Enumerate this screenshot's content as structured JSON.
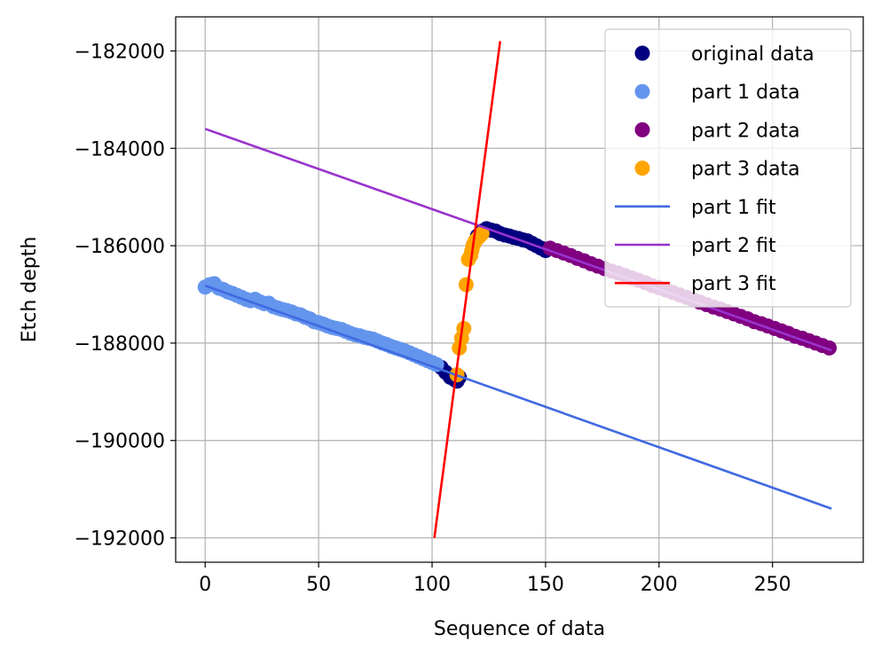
{
  "chart_data": {
    "type": "scatter",
    "title": "",
    "xlabel": "Sequence of data",
    "ylabel": "Etch depth",
    "xlim": [
      -13,
      290
    ],
    "ylim": [
      -192500,
      -181300
    ],
    "xticks": [
      0,
      50,
      100,
      150,
      200,
      250
    ],
    "xtick_labels": [
      "0",
      "50",
      "100",
      "150",
      "200",
      "250"
    ],
    "yticks": [
      -182000,
      -184000,
      -186000,
      -188000,
      -190000,
      -192000
    ],
    "ytick_labels": [
      "−182000",
      "−184000",
      "−186000",
      "−188000",
      "−190000",
      "−192000"
    ],
    "grid": true,
    "legend_position": "top-right",
    "scatter_series": [
      {
        "name": "original data",
        "color": "#000080",
        "points": [
          [
            104,
            -188500
          ],
          [
            106,
            -188600
          ],
          [
            108,
            -188700
          ],
          [
            110,
            -188750
          ],
          [
            111,
            -188780
          ],
          [
            112,
            -188700
          ],
          [
            120,
            -185800
          ],
          [
            122,
            -185700
          ],
          [
            124,
            -185650
          ],
          [
            126,
            -185680
          ],
          [
            128,
            -185700
          ],
          [
            130,
            -185750
          ],
          [
            132,
            -185780
          ],
          [
            134,
            -185800
          ],
          [
            136,
            -185830
          ],
          [
            138,
            -185850
          ],
          [
            140,
            -185880
          ],
          [
            142,
            -185900
          ],
          [
            144,
            -185950
          ],
          [
            146,
            -186000
          ],
          [
            148,
            -186050
          ],
          [
            150,
            -186100
          ]
        ]
      },
      {
        "name": "part 1 data",
        "color": "#6495ED",
        "points": [
          [
            0,
            -186850
          ],
          [
            2,
            -186800
          ],
          [
            4,
            -186780
          ],
          [
            6,
            -186870
          ],
          [
            8,
            -186900
          ],
          [
            10,
            -186950
          ],
          [
            12,
            -186980
          ],
          [
            14,
            -187020
          ],
          [
            16,
            -187060
          ],
          [
            18,
            -187100
          ],
          [
            20,
            -187130
          ],
          [
            22,
            -187100
          ],
          [
            24,
            -187150
          ],
          [
            26,
            -187190
          ],
          [
            28,
            -187180
          ],
          [
            30,
            -187250
          ],
          [
            32,
            -187280
          ],
          [
            34,
            -187310
          ],
          [
            36,
            -187330
          ],
          [
            38,
            -187360
          ],
          [
            40,
            -187400
          ],
          [
            42,
            -187420
          ],
          [
            44,
            -187470
          ],
          [
            46,
            -187500
          ],
          [
            48,
            -187560
          ],
          [
            50,
            -187580
          ],
          [
            52,
            -187610
          ],
          [
            54,
            -187650
          ],
          [
            56,
            -187680
          ],
          [
            58,
            -187700
          ],
          [
            60,
            -187720
          ],
          [
            62,
            -187760
          ],
          [
            64,
            -187800
          ],
          [
            66,
            -187830
          ],
          [
            68,
            -187850
          ],
          [
            70,
            -187880
          ],
          [
            72,
            -187900
          ],
          [
            74,
            -187920
          ],
          [
            76,
            -187960
          ],
          [
            78,
            -188000
          ],
          [
            80,
            -188030
          ],
          [
            82,
            -188070
          ],
          [
            84,
            -188100
          ],
          [
            86,
            -188130
          ],
          [
            88,
            -188160
          ],
          [
            90,
            -188200
          ],
          [
            92,
            -188240
          ],
          [
            94,
            -188280
          ],
          [
            96,
            -188320
          ],
          [
            98,
            -188360
          ],
          [
            100,
            -188400
          ],
          [
            102,
            -188440
          ]
        ]
      },
      {
        "name": "part 2 data",
        "color": "#800080",
        "points": [
          [
            152,
            -186050
          ],
          [
            155,
            -186100
          ],
          [
            158,
            -186150
          ],
          [
            161,
            -186200
          ],
          [
            164,
            -186260
          ],
          [
            167,
            -186310
          ],
          [
            170,
            -186370
          ],
          [
            173,
            -186420
          ],
          [
            176,
            -186470
          ],
          [
            179,
            -186520
          ],
          [
            182,
            -186560
          ],
          [
            185,
            -186610
          ],
          [
            188,
            -186660
          ],
          [
            191,
            -186710
          ],
          [
            194,
            -186760
          ],
          [
            197,
            -186820
          ],
          [
            200,
            -186860
          ],
          [
            203,
            -186910
          ],
          [
            206,
            -186960
          ],
          [
            209,
            -187010
          ],
          [
            212,
            -187060
          ],
          [
            215,
            -187110
          ],
          [
            218,
            -187160
          ],
          [
            221,
            -187210
          ],
          [
            224,
            -187260
          ],
          [
            227,
            -187300
          ],
          [
            230,
            -187350
          ],
          [
            233,
            -187400
          ],
          [
            236,
            -187450
          ],
          [
            239,
            -187500
          ],
          [
            242,
            -187560
          ],
          [
            245,
            -187600
          ],
          [
            248,
            -187650
          ],
          [
            251,
            -187700
          ],
          [
            254,
            -187750
          ],
          [
            257,
            -187800
          ],
          [
            260,
            -187860
          ],
          [
            263,
            -187900
          ],
          [
            266,
            -187950
          ],
          [
            269,
            -188000
          ],
          [
            272,
            -188050
          ],
          [
            275,
            -188100
          ]
        ]
      },
      {
        "name": "part 3 data",
        "color": "#FFA500",
        "points": [
          [
            111,
            -188650
          ],
          [
            112,
            -188100
          ],
          [
            113,
            -187900
          ],
          [
            114,
            -187700
          ],
          [
            115,
            -186800
          ],
          [
            116,
            -186280
          ],
          [
            117,
            -186200
          ],
          [
            117.5,
            -186100
          ],
          [
            118,
            -186000
          ],
          [
            118.5,
            -185950
          ],
          [
            119,
            -185900
          ],
          [
            120,
            -185850
          ],
          [
            121,
            -185800
          ],
          [
            122,
            -185750
          ]
        ]
      }
    ],
    "line_series": [
      {
        "name": "part 1 fit",
        "color": "#4169E1",
        "x": [
          0,
          276
        ],
        "y": [
          -186820,
          -191400
        ]
      },
      {
        "name": "part 2 fit",
        "color": "#9932CC",
        "x": [
          0,
          276
        ],
        "y": [
          -183600,
          -188150
        ]
      },
      {
        "name": "part 3 fit",
        "color": "#FF0000",
        "x": [
          101,
          130
        ],
        "y": [
          -192000,
          -181800
        ]
      }
    ]
  }
}
